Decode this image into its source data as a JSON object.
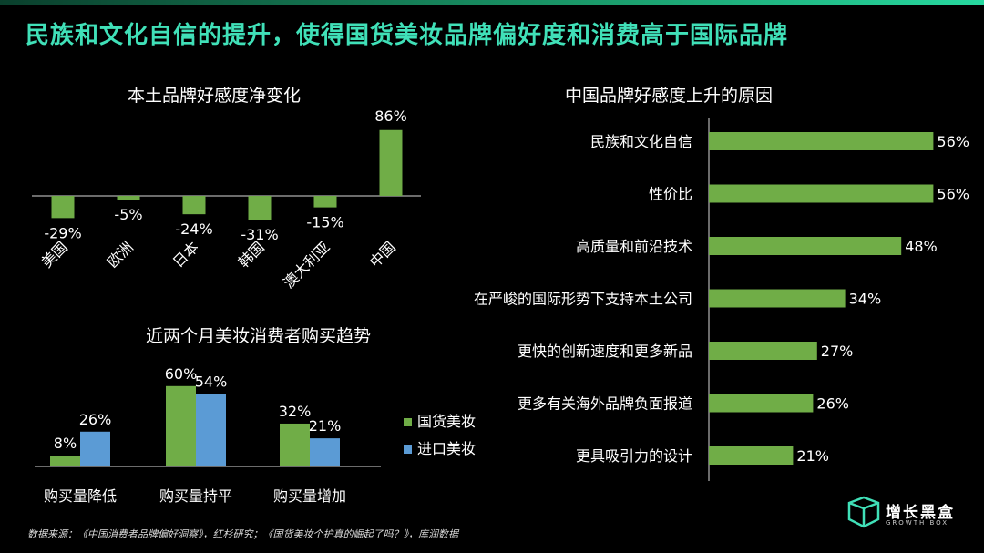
{
  "title": "民族和文化自信的提升，使得国货美妆品牌偏好度和消费高于国际品牌",
  "colors": {
    "green": "#70ad47",
    "blue": "#5b9bd5",
    "accent": "#40e0b8"
  },
  "source": "数据来源：《中国消费者品牌偏好洞察》，红杉研究；《国货美妆个护真的崛起了吗？》，库润数据",
  "logo": {
    "name": "增长黑盒",
    "sub": "GROWTH BOX"
  },
  "chart_data": [
    {
      "type": "bar",
      "title": "本土品牌好感度净变化",
      "categories": [
        "美国",
        "欧洲",
        "日本",
        "韩国",
        "澳大利亚",
        "中国"
      ],
      "values": [
        -29,
        -5,
        -24,
        -31,
        -15,
        86
      ],
      "labels": [
        "-29%",
        "-5%",
        "-24%",
        "-31%",
        "-15%",
        "86%"
      ]
    },
    {
      "type": "bar",
      "title": "近两个月美妆消费者购买趋势",
      "categories": [
        "购买量降低",
        "购买量持平",
        "购买量增加"
      ],
      "series": [
        {
          "name": "国货美妆",
          "values": [
            8,
            60,
            32
          ],
          "labels": [
            "8%",
            "60%",
            "32%"
          ]
        },
        {
          "name": "进口美妆",
          "values": [
            26,
            54,
            21
          ],
          "labels": [
            "26%",
            "54%",
            "21%"
          ]
        }
      ],
      "legend": "right"
    },
    {
      "type": "bar",
      "orientation": "horizontal",
      "title": "中国品牌好感度上升的原因",
      "categories": [
        "民族和文化自信",
        "性价比",
        "高质量和前沿技术",
        "在严峻的国际形势下支持本土公司",
        "更快的创新速度和更多新品",
        "更多有关海外品牌负面报道",
        "更具吸引力的设计"
      ],
      "values": [
        56,
        56,
        48,
        34,
        27,
        26,
        21
      ],
      "labels": [
        "56%",
        "56%",
        "48%",
        "34%",
        "27%",
        "26%",
        "21%"
      ]
    }
  ]
}
